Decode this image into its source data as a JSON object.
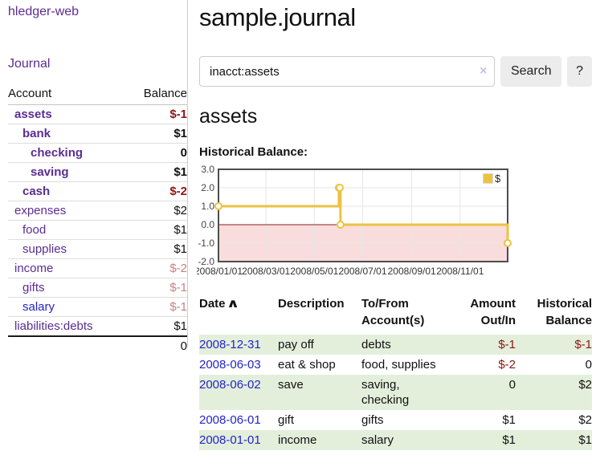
{
  "app_title": "hledger-web",
  "colors": {
    "purple_link": "#5b2d91",
    "blue_link": "#2323cc",
    "negative_strong": "#8b1717",
    "negative_soft": "#c98181",
    "row_stripe_green": "#e3efdb",
    "chart_line_gold": "#edc240",
    "chart_negative_fill": "#f9dddd",
    "chart_zero_line": "#8b1c1c",
    "button_bg": "#ececec"
  },
  "sidebar": {
    "journal_link": "Journal",
    "accounts": {
      "col_account": "Account",
      "col_balance": "Balance",
      "rows": [
        {
          "name": "assets",
          "balance": "$-1",
          "indent": 1,
          "bold": true,
          "balance_color": "neg-strong"
        },
        {
          "name": "bank",
          "balance": "$1",
          "indent": 2,
          "bold": true,
          "balance_color": "normal"
        },
        {
          "name": "checking",
          "balance": "0",
          "indent": 3,
          "bold": true,
          "balance_color": "normal"
        },
        {
          "name": "saving",
          "balance": "$1",
          "indent": 3,
          "bold": true,
          "balance_color": "normal"
        },
        {
          "name": "cash",
          "balance": "$-2",
          "indent": 2,
          "bold": true,
          "balance_color": "neg-strong"
        },
        {
          "name": "expenses",
          "balance": "$2",
          "indent": 1,
          "bold": false,
          "balance_color": "normal"
        },
        {
          "name": "food",
          "balance": "$1",
          "indent": 2,
          "bold": false,
          "balance_color": "normal"
        },
        {
          "name": "supplies",
          "balance": "$1",
          "indent": 2,
          "bold": false,
          "balance_color": "normal"
        },
        {
          "name": "income",
          "balance": "$-2",
          "indent": 1,
          "bold": false,
          "balance_color": "neg-soft"
        },
        {
          "name": "gifts",
          "balance": "$-1",
          "indent": 2,
          "bold": false,
          "balance_color": "neg-soft"
        },
        {
          "name": "salary",
          "balance": "$-1",
          "indent": 2,
          "bold": false,
          "balance_color": "neg-soft",
          "link_color": "blue"
        },
        {
          "name": "liabilities:debts",
          "balance": "$1",
          "indent": 1,
          "bold": false,
          "balance_color": "normal"
        }
      ],
      "total": "0"
    }
  },
  "main": {
    "title": "sample.journal",
    "search": {
      "value": "inacct:assets",
      "clear_icon": "×",
      "search_button": "Search",
      "help_button": "?"
    },
    "account_heading": "assets",
    "chart_title": "Historical Balance:"
  },
  "chart_data": {
    "type": "line",
    "title": "Historical Balance",
    "step": true,
    "series": [
      {
        "name": "$",
        "color": "#edc240",
        "points": [
          {
            "date": "2008-01-01",
            "value": 1
          },
          {
            "date": "2008-06-01",
            "value": 2
          },
          {
            "date": "2008-06-02",
            "value": 2
          },
          {
            "date": "2008-06-03",
            "value": 0
          },
          {
            "date": "2008-12-31",
            "value": -1
          }
        ]
      }
    ],
    "x_ticks": [
      "2008/01/01",
      "2008/03/01",
      "2008/05/01",
      "2008/07/01",
      "2008/09/01",
      "2008/11/01"
    ],
    "y_ticks": [
      3.0,
      2.0,
      1.0,
      0.0,
      -1.0,
      -2.0
    ],
    "xlim": [
      "2008-01-01",
      "2008-12-31"
    ],
    "ylim": [
      -2,
      3
    ],
    "grid": true,
    "legend": {
      "label": "$",
      "position": "top-right"
    },
    "negative_fill": "#f9dddd",
    "zero_line_color": "#8b1c1c"
  },
  "register": {
    "headers": {
      "date": "Date",
      "sort_icon": "∧",
      "description": "Description",
      "accounts": "To/From Account(s)",
      "amount": "Amount Out/In",
      "balance": "Historical Balance"
    },
    "rows": [
      {
        "date": "2008-12-31",
        "description": "pay off",
        "accounts": "debts",
        "amount": "$-1",
        "amount_neg": true,
        "balance": "$-1",
        "balance_neg": true
      },
      {
        "date": "2008-06-03",
        "description": "eat & shop",
        "accounts": "food, supplies",
        "amount": "$-2",
        "amount_neg": true,
        "balance": "0",
        "balance_neg": false
      },
      {
        "date": "2008-06-02",
        "description": "save",
        "accounts": "saving, checking",
        "amount": "0",
        "amount_neg": false,
        "balance": "$2",
        "balance_neg": false
      },
      {
        "date": "2008-06-01",
        "description": "gift",
        "accounts": "gifts",
        "amount": "$1",
        "amount_neg": false,
        "balance": "$2",
        "balance_neg": false
      },
      {
        "date": "2008-01-01",
        "description": "income",
        "accounts": "salary",
        "amount": "$1",
        "amount_neg": false,
        "balance": "$1",
        "balance_neg": false
      }
    ]
  }
}
